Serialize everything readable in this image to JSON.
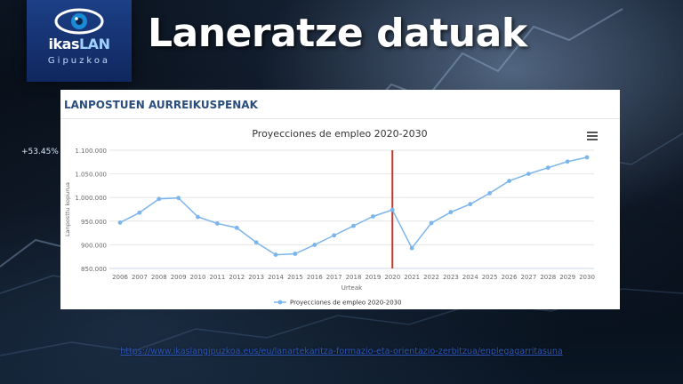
{
  "slide": {
    "title": "Laneratze datuak",
    "ticker_text": "+53.45%",
    "link_text": "https://www.ikaslangipuzkoa.eus/eu/lanartekaritza-formazio-eta-orientazio-zerbitzua/enplegagarritasuna"
  },
  "logo": {
    "word_a": "ikas",
    "word_b": "LAN",
    "sub": "Gipuzkoa",
    "eye_color": "#1a8ad4"
  },
  "card": {
    "header": "LANPOSTUEN AURREIKUSPENAK"
  },
  "colors": {
    "series": "#7cb5ec",
    "marker": "#c0392b",
    "header": "#2a4d7c"
  },
  "chart_data": {
    "type": "line",
    "title": "Proyecciones de empleo 2020-2030",
    "xlabel": "Urteak",
    "ylabel": "Lanposttu kopurua",
    "x": [
      "2006",
      "2007",
      "2008",
      "2009",
      "2010",
      "2011",
      "2012",
      "2013",
      "2014",
      "2015",
      "2016",
      "2017",
      "2018",
      "2019",
      "2020",
      "2021",
      "2022",
      "2023",
      "2024",
      "2025",
      "2026",
      "2027",
      "2028",
      "2029",
      "2030"
    ],
    "series": [
      {
        "name": "Proyecciones de empleo 2020-2030",
        "values": [
          947000,
          968000,
          997000,
          999000,
          959000,
          945000,
          936000,
          905000,
          879000,
          881000,
          900000,
          920000,
          940000,
          960000,
          974000,
          893000,
          946000,
          969000,
          986000,
          1009000,
          1035000,
          1050000,
          1063000,
          1076000,
          1085000
        ]
      }
    ],
    "ylim": [
      850000,
      1100000
    ],
    "yticks": [
      850000,
      900000,
      950000,
      1000000,
      1050000,
      1100000
    ],
    "ytick_labels": [
      "850.000",
      "900.000",
      "950.000",
      "1.000.000",
      "1.050.000",
      "1.100.000"
    ],
    "vertical_marker": "2020",
    "grid": true,
    "legend": "bottom-center"
  }
}
